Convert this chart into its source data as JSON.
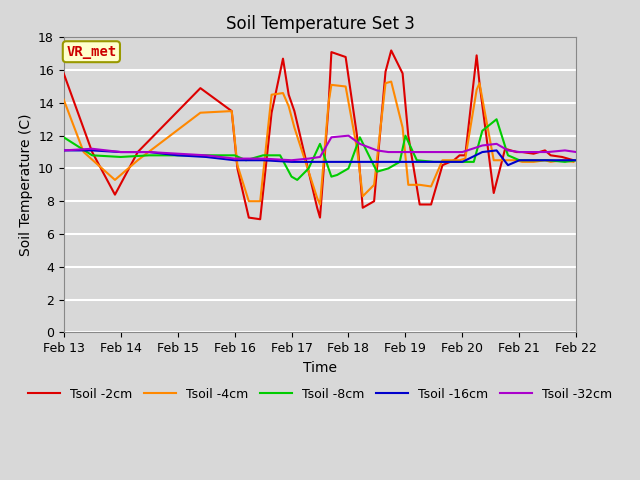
{
  "title": "Soil Temperature Set 3",
  "xlabel": "Time",
  "ylabel": "Soil Temperature (C)",
  "ylim": [
    0,
    18
  ],
  "yticks": [
    0,
    2,
    4,
    6,
    8,
    10,
    12,
    14,
    16,
    18
  ],
  "background_color": "#d8d8d8",
  "plot_bg_color": "#d8d8d8",
  "annotation_text": "VR_met",
  "annotation_color": "#cc0000",
  "annotation_bg": "#ffffcc",
  "series": {
    "Tsoil -2cm": {
      "color": "#dd0000",
      "times_days": [
        0.0,
        0.5,
        0.9,
        1.3,
        2.4,
        2.95,
        3.05,
        3.25,
        3.45,
        3.65,
        3.85,
        3.95,
        4.05,
        4.45,
        4.5,
        4.65,
        4.7,
        4.95,
        5.15,
        5.25,
        5.45,
        5.65,
        5.75,
        5.95,
        6.05,
        6.25,
        6.45,
        6.65,
        6.85,
        6.95,
        7.05,
        7.25,
        7.3,
        7.55,
        7.75,
        7.95,
        8.05,
        8.25,
        8.45,
        8.55,
        8.75,
        8.95
      ],
      "values": [
        15.8,
        11.0,
        8.4,
        11.0,
        14.9,
        13.5,
        10.0,
        7.0,
        6.9,
        13.4,
        16.7,
        14.5,
        13.5,
        7.6,
        7.0,
        13.8,
        17.1,
        16.8,
        12.0,
        7.6,
        8.0,
        15.9,
        17.2,
        15.8,
        12.0,
        7.8,
        7.8,
        10.2,
        10.5,
        10.8,
        10.8,
        16.9,
        15.2,
        8.5,
        11.2,
        11.0,
        11.0,
        10.9,
        11.1,
        10.8,
        10.7,
        10.5
      ]
    },
    "Tsoil -4cm": {
      "color": "#ff8800",
      "times_days": [
        0.0,
        0.35,
        0.9,
        1.3,
        2.4,
        2.95,
        3.05,
        3.25,
        3.45,
        3.65,
        3.85,
        3.95,
        4.05,
        4.45,
        4.5,
        4.65,
        4.7,
        4.95,
        5.15,
        5.25,
        5.45,
        5.65,
        5.75,
        5.95,
        6.05,
        6.25,
        6.45,
        6.65,
        6.85,
        6.95,
        7.05,
        7.25,
        7.3,
        7.55,
        7.75,
        7.95,
        8.05,
        8.25,
        8.45,
        8.55,
        8.75,
        8.95
      ],
      "values": [
        14.2,
        11.0,
        9.3,
        10.5,
        13.4,
        13.5,
        10.2,
        8.0,
        8.0,
        14.5,
        14.6,
        13.8,
        12.5,
        8.2,
        7.8,
        14.0,
        15.1,
        15.0,
        11.2,
        8.3,
        9.0,
        15.2,
        15.3,
        12.5,
        9.0,
        9.0,
        8.9,
        10.5,
        10.5,
        10.5,
        10.6,
        14.8,
        15.2,
        10.5,
        10.5,
        10.5,
        10.4,
        10.4,
        10.5,
        10.4,
        10.5,
        10.4
      ]
    },
    "Tsoil -8cm": {
      "color": "#00cc00",
      "times_days": [
        0.0,
        0.5,
        1.0,
        1.5,
        2.0,
        2.5,
        3.0,
        3.2,
        3.5,
        3.8,
        4.0,
        4.1,
        4.3,
        4.5,
        4.7,
        4.8,
        5.0,
        5.2,
        5.5,
        5.7,
        5.9,
        6.0,
        6.2,
        6.5,
        6.8,
        7.0,
        7.2,
        7.35,
        7.6,
        7.8,
        8.0,
        8.2,
        8.5,
        8.8,
        9.0
      ],
      "values": [
        11.9,
        10.8,
        10.7,
        10.8,
        10.8,
        10.8,
        10.8,
        10.5,
        10.8,
        10.8,
        9.5,
        9.3,
        10.0,
        11.5,
        9.5,
        9.6,
        10.0,
        11.9,
        9.8,
        10.0,
        10.4,
        12.0,
        10.5,
        10.4,
        10.4,
        10.4,
        10.4,
        12.3,
        13.0,
        10.8,
        10.5,
        10.5,
        10.5,
        10.4,
        10.5
      ]
    },
    "Tsoil -16cm": {
      "color": "#0000cc",
      "times_days": [
        0.0,
        0.5,
        1.0,
        1.5,
        2.0,
        2.5,
        3.0,
        3.5,
        4.0,
        4.5,
        5.0,
        5.5,
        6.0,
        6.5,
        7.0,
        7.35,
        7.6,
        7.8,
        8.0,
        8.2,
        8.5,
        8.8,
        9.0
      ],
      "values": [
        11.1,
        11.1,
        11.0,
        11.0,
        10.8,
        10.7,
        10.5,
        10.5,
        10.4,
        10.4,
        10.4,
        10.4,
        10.4,
        10.4,
        10.4,
        11.0,
        11.1,
        10.2,
        10.5,
        10.5,
        10.5,
        10.5,
        10.5
      ]
    },
    "Tsoil -32cm": {
      "color": "#aa00cc",
      "times_days": [
        0.0,
        0.5,
        1.0,
        1.5,
        2.0,
        2.5,
        3.0,
        3.5,
        4.0,
        4.3,
        4.5,
        4.7,
        5.0,
        5.2,
        5.5,
        5.7,
        6.0,
        6.5,
        7.0,
        7.35,
        7.6,
        7.8,
        8.0,
        8.2,
        8.5,
        8.8,
        9.0
      ],
      "values": [
        11.1,
        11.2,
        11.0,
        11.0,
        10.9,
        10.8,
        10.6,
        10.6,
        10.5,
        10.6,
        10.7,
        11.9,
        12.0,
        11.5,
        11.1,
        11.0,
        11.0,
        11.0,
        11.0,
        11.4,
        11.5,
        11.1,
        11.0,
        11.0,
        11.0,
        11.1,
        11.0
      ]
    }
  },
  "xlim_days": [
    0,
    9
  ],
  "xtick_days": [
    0,
    1,
    2,
    3,
    4,
    5,
    6,
    7,
    8,
    9
  ],
  "xtick_labels": [
    "Feb 13",
    "Feb 14",
    "Feb 15",
    "Feb 16",
    "Feb 17",
    "Feb 18",
    "Feb 19",
    "Feb 20",
    "Feb 21",
    "Feb 22"
  ],
  "grid_color": "#ffffff",
  "grid_lw": 1.5,
  "line_width": 1.5,
  "title_fontsize": 12,
  "axis_label_fontsize": 10,
  "tick_fontsize": 9,
  "legend_fontsize": 9
}
